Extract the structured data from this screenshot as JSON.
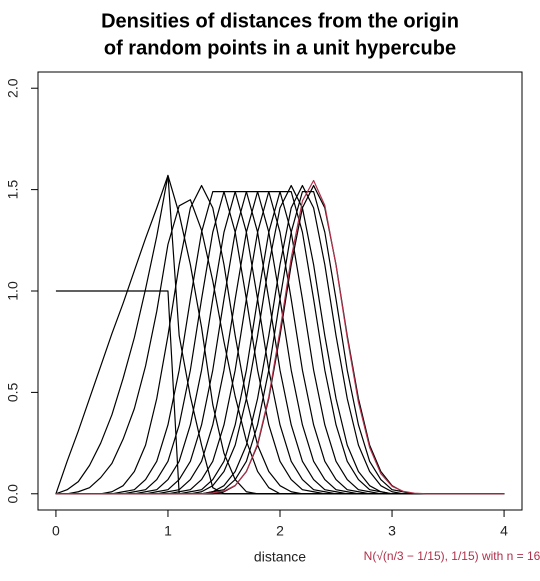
{
  "chart_data": {
    "type": "line",
    "title": [
      "Densities of distances from the origin",
      "of random points in a unit hypercube"
    ],
    "x_label": "distance",
    "annotation": "N(√(n/3 − 1/15), 1/15) with n = 16",
    "annotation_color": "#b0304a",
    "xlim": [
      -0.16,
      4.16
    ],
    "ylim": [
      -0.08,
      2.08
    ],
    "xticks": [
      0,
      1,
      2,
      3,
      4
    ],
    "yticks": [
      {
        "value": 0,
        "label": "0.0"
      },
      0.5,
      {
        "value": 1,
        "label": "1.0"
      },
      1.5,
      {
        "value": 2,
        "label": "2.0"
      }
    ],
    "x": [
      0,
      0.1,
      0.2,
      0.3,
      0.4,
      0.5,
      0.6,
      0.7,
      0.8,
      0.9,
      1,
      1.1,
      1.2,
      1.3,
      1.4,
      1.5,
      1.6,
      1.7,
      1.8,
      1.9,
      2,
      2.1,
      2.2,
      2.3,
      2.4,
      2.5,
      2.6,
      2.7,
      2.8,
      2.9,
      3,
      3.1,
      3.2,
      3.3,
      3.4,
      3.5,
      3.6,
      3.7,
      3.8,
      3.9,
      4
    ],
    "series": [
      {
        "color": "#000000",
        "values": [
          1,
          1,
          1,
          1,
          1,
          1,
          1,
          1,
          1,
          1,
          1,
          0,
          0,
          0,
          0,
          0,
          0,
          0,
          0,
          0,
          0,
          0,
          0,
          0,
          0,
          0,
          0,
          0,
          0,
          0,
          0,
          0,
          0,
          0,
          0,
          0,
          0,
          0,
          0,
          0,
          0
        ]
      },
      {
        "color": "#000000",
        "values": [
          0,
          0.16,
          0.31,
          0.47,
          0.63,
          0.79,
          0.94,
          1.1,
          1.26,
          1.41,
          1.57,
          0.78,
          0.48,
          0.24,
          0.03,
          0,
          0,
          0,
          0,
          0,
          0,
          0,
          0,
          0,
          0,
          0,
          0,
          0,
          0,
          0,
          0,
          0,
          0,
          0,
          0,
          0,
          0,
          0,
          0,
          0,
          0
        ]
      },
      {
        "color": "#000000",
        "values": [
          0,
          0.02,
          0.06,
          0.14,
          0.25,
          0.39,
          0.57,
          0.77,
          1.01,
          1.27,
          1.57,
          1.38,
          1.13,
          0.82,
          0.44,
          0.2,
          0.07,
          0.01,
          0,
          0,
          0,
          0,
          0,
          0,
          0,
          0,
          0,
          0,
          0,
          0,
          0,
          0,
          0,
          0,
          0,
          0,
          0,
          0,
          0,
          0,
          0
        ]
      },
      {
        "color": "#000000",
        "values": [
          0,
          0,
          0.01,
          0.03,
          0.08,
          0.15,
          0.27,
          0.42,
          0.63,
          0.9,
          1.23,
          1.42,
          1.45,
          1.3,
          1.05,
          0.75,
          0.48,
          0.26,
          0.11,
          0.03,
          0,
          0,
          0,
          0,
          0,
          0,
          0,
          0,
          0,
          0,
          0,
          0,
          0,
          0,
          0,
          0,
          0,
          0,
          0,
          0,
          0
        ]
      },
      {
        "color": "#000000",
        "values": [
          0,
          0,
          0,
          0,
          0,
          0.01,
          0.04,
          0.11,
          0.24,
          0.47,
          0.78,
          1.13,
          1.41,
          1.52,
          1.41,
          1.13,
          0.78,
          0.47,
          0.24,
          0.11,
          0.04,
          0.01,
          0,
          0,
          0,
          0,
          0,
          0,
          0,
          0,
          0,
          0,
          0,
          0,
          0,
          0,
          0,
          0,
          0,
          0,
          0
        ]
      },
      {
        "color": "#000000",
        "values": [
          0,
          0,
          0,
          0,
          0,
          0,
          0.01,
          0.02,
          0.07,
          0.16,
          0.34,
          0.61,
          0.96,
          1.29,
          1.49,
          1.49,
          1.29,
          0.96,
          0.61,
          0.34,
          0.16,
          0.07,
          0.02,
          0.01,
          0,
          0,
          0,
          0,
          0,
          0,
          0,
          0,
          0,
          0,
          0,
          0,
          0,
          0,
          0,
          0,
          0
        ]
      },
      {
        "color": "#000000",
        "values": [
          0,
          0,
          0,
          0,
          0,
          0,
          0,
          0.01,
          0.02,
          0.07,
          0.16,
          0.34,
          0.61,
          0.96,
          1.29,
          1.49,
          1.49,
          1.29,
          0.96,
          0.61,
          0.34,
          0.16,
          0.07,
          0.02,
          0.01,
          0,
          0,
          0,
          0,
          0,
          0,
          0,
          0,
          0,
          0,
          0,
          0,
          0,
          0,
          0,
          0
        ]
      },
      {
        "color": "#000000",
        "values": [
          0,
          0,
          0,
          0,
          0,
          0,
          0,
          0,
          0.01,
          0.02,
          0.07,
          0.16,
          0.34,
          0.61,
          0.96,
          1.29,
          1.49,
          1.49,
          1.29,
          0.96,
          0.61,
          0.34,
          0.16,
          0.07,
          0.02,
          0.01,
          0,
          0,
          0,
          0,
          0,
          0,
          0,
          0,
          0,
          0,
          0,
          0,
          0,
          0,
          0
        ]
      },
      {
        "color": "#000000",
        "values": [
          0,
          0,
          0,
          0,
          0,
          0,
          0,
          0,
          0,
          0.01,
          0.02,
          0.07,
          0.16,
          0.34,
          0.61,
          0.96,
          1.29,
          1.49,
          1.49,
          1.29,
          0.96,
          0.61,
          0.34,
          0.16,
          0.07,
          0.02,
          0.01,
          0,
          0,
          0,
          0,
          0,
          0,
          0,
          0,
          0,
          0,
          0,
          0,
          0,
          0
        ]
      },
      {
        "color": "#000000",
        "values": [
          0,
          0,
          0,
          0,
          0,
          0,
          0,
          0,
          0,
          0,
          0.01,
          0.02,
          0.07,
          0.16,
          0.34,
          0.61,
          0.96,
          1.29,
          1.49,
          1.49,
          1.29,
          0.96,
          0.61,
          0.34,
          0.16,
          0.07,
          0.02,
          0.01,
          0,
          0,
          0,
          0,
          0,
          0,
          0,
          0,
          0,
          0,
          0,
          0,
          0
        ]
      },
      {
        "color": "#000000",
        "values": [
          0,
          0,
          0,
          0,
          0,
          0,
          0,
          0,
          0,
          0,
          0,
          0.01,
          0.02,
          0.07,
          0.16,
          0.34,
          0.61,
          0.96,
          1.29,
          1.49,
          1.49,
          1.29,
          0.96,
          0.61,
          0.34,
          0.16,
          0.07,
          0.02,
          0.01,
          0,
          0,
          0,
          0,
          0,
          0,
          0,
          0,
          0,
          0,
          0,
          0
        ]
      },
      {
        "color": "#000000",
        "values": [
          0,
          0,
          0,
          0,
          0,
          0,
          0,
          0,
          0,
          0,
          0,
          0,
          0.01,
          0.02,
          0.07,
          0.16,
          0.34,
          0.61,
          0.96,
          1.29,
          1.49,
          1.49,
          1.29,
          0.96,
          0.61,
          0.34,
          0.16,
          0.07,
          0.02,
          0.01,
          0,
          0,
          0,
          0,
          0,
          0,
          0,
          0,
          0,
          0,
          0
        ]
      },
      {
        "color": "#000000",
        "values": [
          0,
          0,
          0,
          0,
          0,
          0,
          0,
          0,
          0,
          0,
          0,
          0,
          0,
          0.01,
          0.04,
          0.11,
          0.24,
          0.47,
          0.78,
          1.13,
          1.41,
          1.52,
          1.41,
          1.13,
          0.78,
          0.47,
          0.24,
          0.11,
          0.04,
          0.01,
          0,
          0,
          0,
          0,
          0,
          0,
          0,
          0,
          0,
          0,
          0
        ]
      },
      {
        "color": "#000000",
        "values": [
          0,
          0,
          0,
          0,
          0,
          0,
          0,
          0,
          0,
          0,
          0,
          0,
          0,
          0,
          0.01,
          0.04,
          0.11,
          0.24,
          0.47,
          0.78,
          1.13,
          1.41,
          1.52,
          1.41,
          1.13,
          0.78,
          0.47,
          0.24,
          0.11,
          0.04,
          0.01,
          0,
          0,
          0,
          0,
          0,
          0,
          0,
          0,
          0,
          0
        ]
      },
      {
        "color": "#000000",
        "values": [
          0,
          0,
          0,
          0,
          0,
          0,
          0,
          0,
          0,
          0,
          0,
          0,
          0,
          0,
          0.01,
          0.02,
          0.07,
          0.16,
          0.34,
          0.61,
          0.96,
          1.29,
          1.49,
          1.49,
          1.29,
          0.96,
          0.61,
          0.34,
          0.16,
          0.07,
          0.02,
          0.01,
          0,
          0,
          0,
          0,
          0,
          0,
          0,
          0,
          0
        ]
      },
      {
        "color": "#000000",
        "values": [
          0,
          0,
          0,
          0,
          0,
          0,
          0,
          0,
          0,
          0,
          0,
          0,
          0,
          0,
          0,
          0.01,
          0.04,
          0.11,
          0.24,
          0.47,
          0.78,
          1.13,
          1.41,
          1.52,
          1.41,
          1.13,
          0.78,
          0.47,
          0.24,
          0.11,
          0.04,
          0.01,
          0,
          0,
          0,
          0,
          0,
          0,
          0,
          0,
          0
        ]
      },
      {
        "color": "#b0304a",
        "values": [
          0,
          0,
          0,
          0,
          0,
          0,
          0,
          0,
          0,
          0,
          0,
          0,
          0,
          0,
          0.004,
          0.013,
          0.041,
          0.109,
          0.246,
          0.479,
          0.805,
          1.162,
          1.444,
          1.545,
          1.422,
          1.127,
          0.769,
          0.452,
          0.228,
          0.099,
          0.037,
          0.012,
          0.003,
          0,
          0,
          0,
          0,
          0,
          0,
          0,
          0
        ]
      }
    ]
  }
}
